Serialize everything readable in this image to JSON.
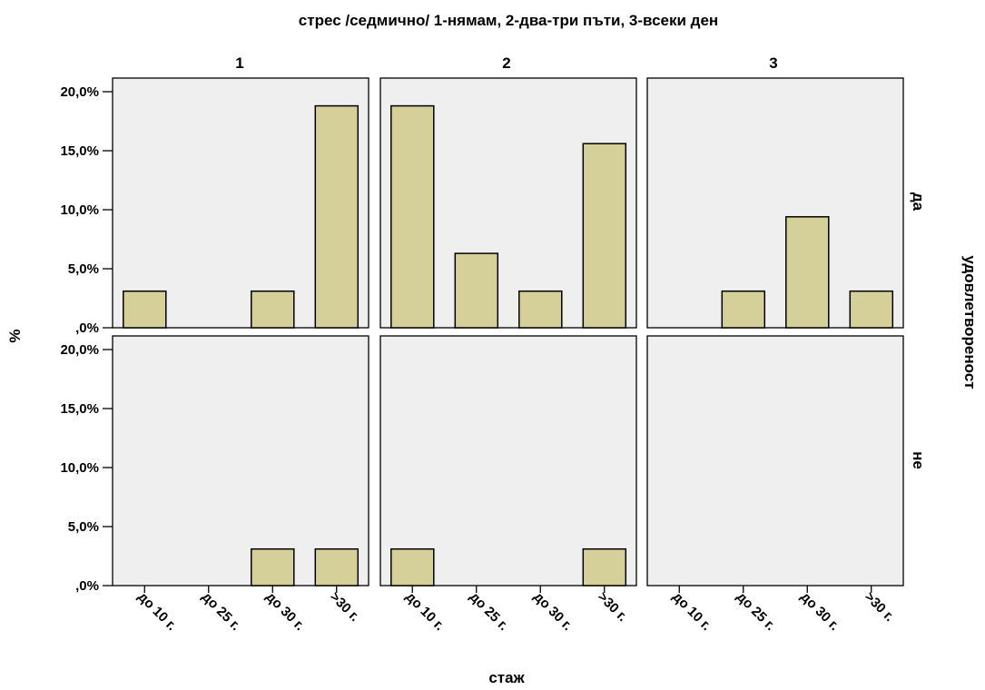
{
  "chart_data": {
    "type": "bar",
    "title": "стрес /седмично/ 1-нямам, 2-два-три пъти, 3-всеки ден",
    "xlabel": "стаж",
    "ylabel": "%",
    "row_label": "удовлетвореност",
    "categories": [
      "до 10 г.",
      "до 25 г.",
      "до 30 г.",
      ">30 г."
    ],
    "columns": [
      "1",
      "2",
      "3"
    ],
    "rows": [
      "да",
      "не"
    ],
    "yticks": [
      ",0%",
      "5,0%",
      "10,0%",
      "15,0%",
      "20,0%"
    ],
    "ylim": [
      0,
      21
    ],
    "bar_color": "#d5cf9a",
    "panel_bg": "#efefef",
    "panels": [
      {
        "row": "да",
        "column": "1",
        "values": [
          3.1,
          0,
          3.1,
          18.8
        ]
      },
      {
        "row": "да",
        "column": "2",
        "values": [
          18.8,
          6.3,
          3.1,
          15.6
        ]
      },
      {
        "row": "да",
        "column": "3",
        "values": [
          0,
          3.1,
          9.4,
          3.1
        ]
      },
      {
        "row": "не",
        "column": "1",
        "values": [
          0,
          0,
          3.1,
          3.1
        ]
      },
      {
        "row": "не",
        "column": "2",
        "values": [
          3.1,
          0,
          0,
          3.1
        ]
      },
      {
        "row": "не",
        "column": "3",
        "values": [
          0,
          0,
          0,
          0
        ]
      }
    ]
  }
}
